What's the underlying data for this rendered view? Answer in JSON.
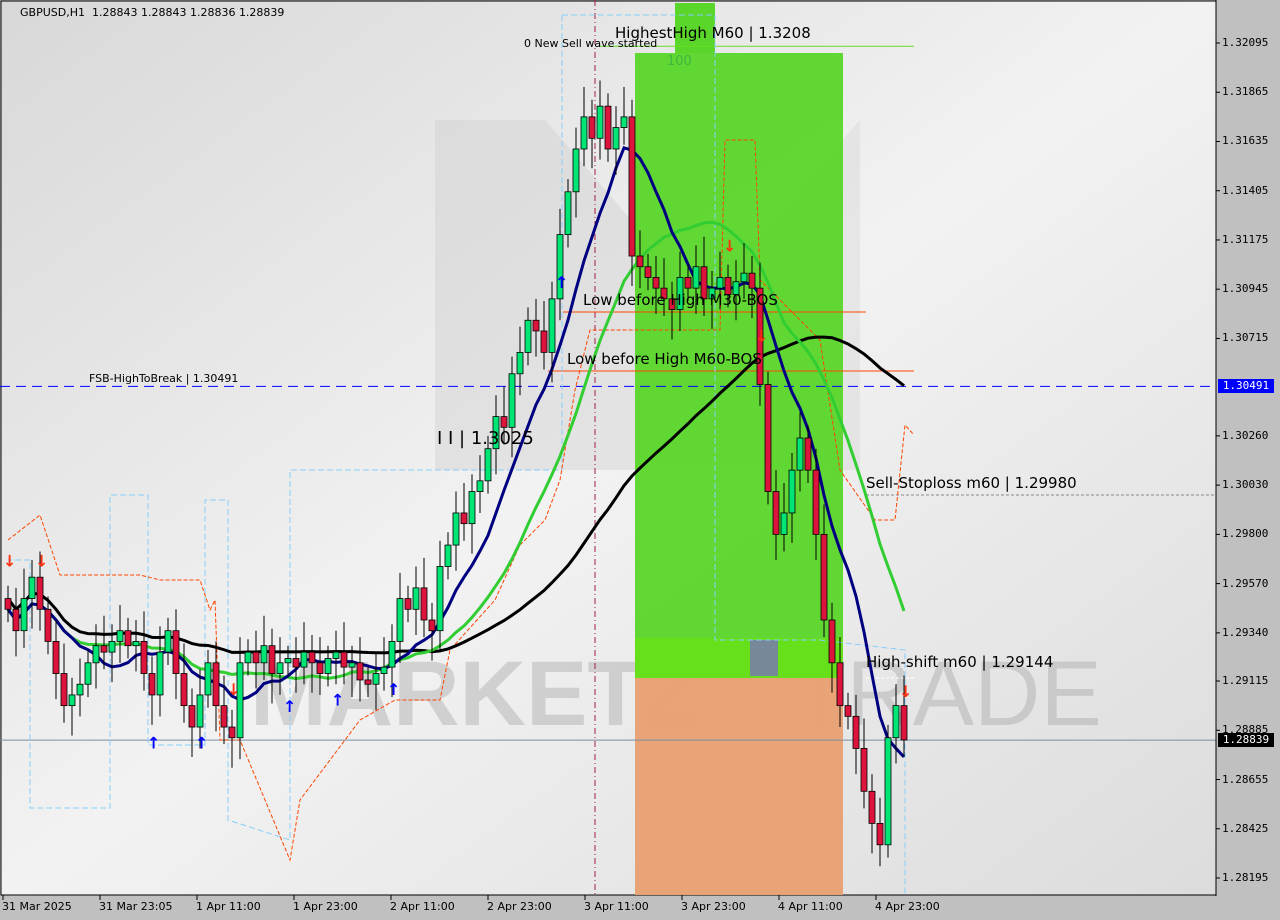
{
  "header": {
    "symbol": "GBPUSD,H1",
    "ohlc": "1.28843 1.28843 1.28836 1.28839"
  },
  "chart_data": {
    "type": "candlestick",
    "title": "GBPUSD,H1",
    "ylim": [
      1.281,
      1.3238
    ],
    "y_ticks": [
      "1.32095",
      "1.31865",
      "1.31635",
      "1.31405",
      "1.31175",
      "1.30945",
      "1.30715",
      "1.30260",
      "1.30030",
      "1.29800",
      "1.29570",
      "1.29340",
      "1.29115",
      "1.28885",
      "1.28655",
      "1.28425",
      "1.28195"
    ],
    "x_ticks": [
      "31 Mar 2025",
      "31 Mar 23:05",
      "1 Apr 11:00",
      "1 Apr 23:00",
      "2 Apr 11:00",
      "2 Apr 23:00",
      "3 Apr 11:00",
      "3 Apr 23:00",
      "4 Apr 11:00",
      "4 Apr 23:00"
    ],
    "closes": [
      1.2945,
      1.2935,
      1.295,
      1.296,
      1.2945,
      1.293,
      1.2915,
      1.29,
      1.2905,
      1.291,
      1.292,
      1.2928,
      1.2925,
      1.293,
      1.2935,
      1.2928,
      1.293,
      1.2915,
      1.2905,
      1.2925,
      1.2935,
      1.2915,
      1.29,
      1.289,
      1.2905,
      1.292,
      1.29,
      1.289,
      1.2885,
      1.292,
      1.2925,
      1.292,
      1.2928,
      1.2915,
      1.292,
      1.2922,
      1.2918,
      1.2925,
      1.292,
      1.2915,
      1.2922,
      1.2925,
      1.2918,
      1.292,
      1.2912,
      1.291,
      1.2915,
      1.2918,
      1.293,
      1.295,
      1.2945,
      1.2955,
      1.294,
      1.2935,
      1.2965,
      1.2975,
      1.299,
      1.2985,
      1.3,
      1.3005,
      1.302,
      1.3035,
      1.303,
      1.3055,
      1.3065,
      1.308,
      1.3075,
      1.3065,
      1.309,
      1.312,
      1.314,
      1.316,
      1.3175,
      1.3165,
      1.318,
      1.316,
      1.317,
      1.3175,
      1.311,
      1.3105,
      1.31,
      1.3095,
      1.309,
      1.3085,
      1.31,
      1.3095,
      1.3105,
      1.309,
      1.3095,
      1.31,
      1.3092,
      1.3098,
      1.3102,
      1.3095,
      1.305,
      1.3,
      1.298,
      1.299,
      1.301,
      1.3025,
      1.301,
      1.298,
      1.294,
      1.292,
      1.29,
      1.2895,
      1.288,
      1.286,
      1.2845,
      1.2835,
      1.2885,
      1.29,
      1.2884
    ],
    "colors": {
      "bull": "#00e676",
      "bear": "#dc143c",
      "ma_fast": "#000080",
      "ma_mid": "#32cd32",
      "ma_slow": "#000000",
      "zone_green": "#5ad62a",
      "zone_orange": "#e8a070"
    },
    "levels": {
      "fsb_high_to_break": {
        "label": "FSB-HighToBreak | 1.30491",
        "price": 1.30491,
        "tag": "1.30491",
        "color": "#0000ff"
      },
      "current": {
        "price": 1.28839,
        "tag": "1.28839"
      },
      "highest_high": {
        "label": "HighestHigh   M60 | 1.3208",
        "price": 1.3208
      },
      "m30_bos": {
        "label": "Low before High  M30-BOS",
        "price": 1.3088
      },
      "m60_bos": {
        "label": "Low before High   M60-BOS",
        "price": 1.306
      },
      "sell_stoploss": {
        "label": "Sell-Stoploss m60 | 1.29980",
        "price": 1.2998
      },
      "high_shift": {
        "label": "High-shift m60 | 1.29144",
        "price": 1.29144
      }
    },
    "annotations": {
      "new_sell_wave": "0 New Sell wave started",
      "level_100": "100",
      "level_1_3025": "I I | 1.3025"
    },
    "watermark": "MARKETZ TRADE",
    "up_arrows": [
      18,
      24,
      35,
      41,
      48,
      69
    ],
    "down_arrows": [
      0,
      4,
      28,
      90,
      94,
      112
    ]
  }
}
